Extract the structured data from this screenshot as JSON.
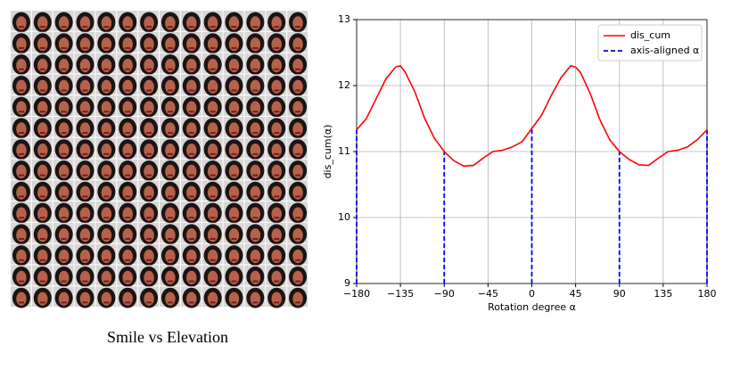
{
  "caption": "Smile vs Elevation",
  "chart_data": {
    "type": "line",
    "xlabel": "Rotation degree α",
    "ylabel": "dis_cum(α)",
    "x": [
      -180,
      -170,
      -160,
      -150,
      -140,
      -135,
      -130,
      -120,
      -110,
      -100,
      -90,
      -80,
      -70,
      -60,
      -50,
      -40,
      -30,
      -20,
      -10,
      0,
      10,
      20,
      30,
      40,
      45,
      50,
      60,
      70,
      80,
      90,
      100,
      110,
      120,
      130,
      140,
      150,
      160,
      170,
      180
    ],
    "series": [
      {
        "name": "dis_cum",
        "color": "#ff0000",
        "values": [
          11.33,
          11.5,
          11.8,
          12.1,
          12.28,
          12.3,
          12.2,
          11.9,
          11.5,
          11.2,
          11.0,
          10.86,
          10.78,
          10.79,
          10.9,
          11.0,
          11.02,
          11.07,
          11.15,
          11.35,
          11.55,
          11.85,
          12.12,
          12.3,
          12.28,
          12.2,
          11.88,
          11.48,
          11.18,
          11.0,
          10.88,
          10.8,
          10.79,
          10.9,
          11.0,
          11.02,
          11.07,
          11.18,
          11.33
        ]
      }
    ],
    "guides": {
      "name": "axis-aligned α",
      "color": "#0000ff",
      "x": [
        -180,
        -90,
        0,
        90,
        180
      ],
      "values": [
        11.33,
        11.0,
        11.35,
        11.0,
        11.33
      ]
    },
    "xlim": [
      -180,
      180
    ],
    "ylim": [
      9,
      13
    ],
    "xticks": [
      {
        "value": -180,
        "label": "−180"
      },
      {
        "value": -135,
        "label": "−135"
      },
      {
        "value": -90,
        "label": "−90"
      },
      {
        "value": -45,
        "label": "−45"
      },
      0,
      45,
      90,
      135,
      180
    ],
    "yticks": [
      9,
      10,
      11,
      12,
      13
    ],
    "grid": true,
    "legend": "upper right"
  }
}
